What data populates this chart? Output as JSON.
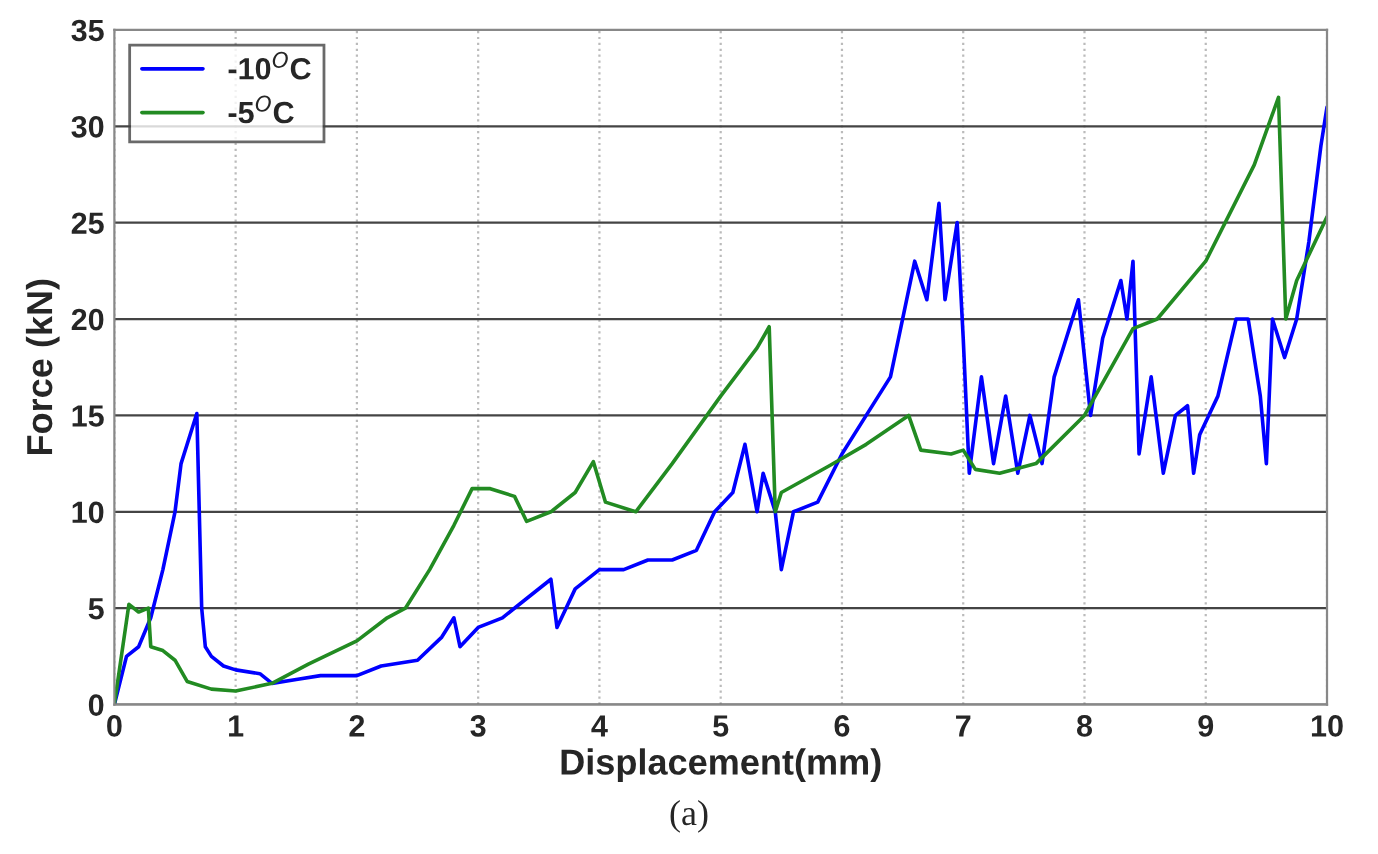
{
  "chart_data": {
    "type": "line",
    "xlabel": "Displacement(mm)",
    "ylabel": "Force (kN)",
    "xlim": [
      0,
      10
    ],
    "ylim": [
      0,
      35
    ],
    "xticks": [
      0,
      1,
      2,
      3,
      4,
      5,
      6,
      7,
      8,
      9,
      10
    ],
    "yticks": [
      0,
      5,
      10,
      15,
      20,
      25,
      30,
      35
    ],
    "grid": true,
    "legend": "top left",
    "annotations": [
      "(a)"
    ],
    "series": [
      {
        "name": "-10$^{O}$C",
        "color": "#0000ff",
        "x": [
          0,
          0.1,
          0.2,
          0.3,
          0.4,
          0.5,
          0.55,
          0.65,
          0.68,
          0.72,
          0.75,
          0.8,
          0.9,
          1.0,
          1.2,
          1.3,
          1.5,
          1.7,
          2.0,
          2.2,
          2.5,
          2.7,
          2.8,
          2.85,
          3.0,
          3.2,
          3.4,
          3.6,
          3.65,
          3.8,
          4.0,
          4.2,
          4.4,
          4.6,
          4.8,
          4.95,
          5.1,
          5.2,
          5.3,
          5.35,
          5.45,
          5.5,
          5.6,
          5.8,
          6.0,
          6.2,
          6.4,
          6.5,
          6.6,
          6.7,
          6.8,
          6.85,
          6.95,
          7.0,
          7.05,
          7.15,
          7.25,
          7.35,
          7.45,
          7.55,
          7.65,
          7.75,
          7.85,
          7.95,
          8.05,
          8.15,
          8.3,
          8.35,
          8.4,
          8.45,
          8.55,
          8.65,
          8.75,
          8.85,
          8.9,
          8.95,
          9.1,
          9.25,
          9.35,
          9.45,
          9.5,
          9.55,
          9.65,
          9.75,
          9.85,
          9.95,
          10
        ],
        "values": [
          0,
          2.5,
          3,
          4.5,
          7,
          10,
          12.5,
          14.5,
          15.1,
          5,
          3,
          2.5,
          2,
          1.8,
          1.6,
          1.1,
          1.3,
          1.5,
          1.5,
          2,
          2.3,
          3.5,
          4.5,
          3,
          4,
          4.5,
          5.5,
          6.5,
          4,
          6,
          7,
          7,
          7.5,
          7.5,
          8,
          10,
          11,
          13.5,
          10,
          12,
          10,
          7,
          10,
          10.5,
          13,
          15,
          17,
          20,
          23,
          21,
          26,
          21,
          25,
          19,
          12,
          17,
          12.5,
          16,
          12,
          15,
          12.5,
          17,
          19,
          21,
          15,
          19,
          22,
          20,
          23,
          13,
          17,
          12,
          15,
          15.5,
          12,
          14,
          16,
          20,
          20,
          16,
          12.5,
          20,
          18,
          20,
          24,
          29,
          31
        ]
      },
      {
        "name": "-5$^{O}$C",
        "color": "#228b22",
        "x": [
          0,
          0.12,
          0.2,
          0.28,
          0.3,
          0.4,
          0.5,
          0.6,
          0.8,
          1.0,
          1.3,
          1.6,
          2.0,
          2.25,
          2.4,
          2.6,
          2.8,
          2.95,
          3.1,
          3.3,
          3.4,
          3.6,
          3.8,
          3.95,
          4.05,
          4.3,
          4.6,
          5.0,
          5.3,
          5.4,
          5.45,
          5.5,
          5.9,
          6.2,
          6.55,
          6.65,
          6.9,
          7.0,
          7.1,
          7.3,
          7.6,
          8.0,
          8.4,
          8.6,
          9.0,
          9.4,
          9.6,
          9.66,
          9.75,
          10
        ],
        "values": [
          0,
          5.2,
          4.8,
          5,
          3,
          2.8,
          2.3,
          1.2,
          0.8,
          0.7,
          1.1,
          2.1,
          3.3,
          4.5,
          5,
          7,
          9.3,
          11.2,
          11.2,
          10.8,
          9.5,
          10,
          11,
          12.6,
          10.5,
          10,
          12.5,
          16,
          18.5,
          19.6,
          10,
          11,
          12.4,
          13.5,
          15,
          13.2,
          13,
          13.2,
          12.2,
          12,
          12.5,
          15,
          19.5,
          20,
          23,
          28,
          31.5,
          20,
          22,
          25.3
        ]
      }
    ]
  }
}
